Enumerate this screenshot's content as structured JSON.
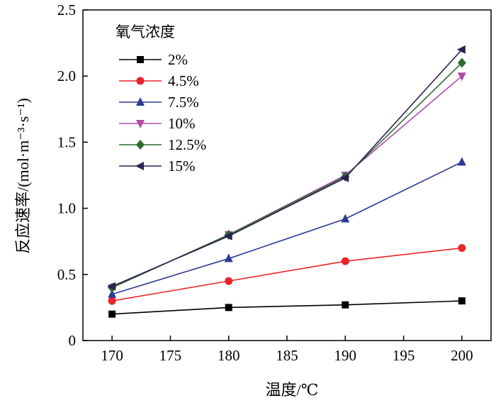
{
  "chart_data": {
    "type": "line",
    "xlabel": "温度/℃",
    "ylabel": "反应速率/(mol·m⁻³·s⁻¹)",
    "x": [
      170,
      180,
      190,
      200
    ],
    "xlim": [
      167.5,
      202.5
    ],
    "ylim": [
      0,
      2.5
    ],
    "xticks": [
      170,
      175,
      180,
      185,
      190,
      195,
      200
    ],
    "yticks": [
      0,
      0.5,
      1.0,
      1.5,
      2.0,
      2.5
    ],
    "xtick_labels": [
      "170",
      "175",
      "180",
      "185",
      "190",
      "195",
      "200"
    ],
    "ytick_labels": [
      "0",
      "0.5",
      "1.0",
      "1.5",
      "2.0",
      "2.5"
    ],
    "grid": false,
    "legend": {
      "title": "氧气浓度",
      "placement": "top-left"
    },
    "series": [
      {
        "name": "2%",
        "color": "#000000",
        "marker": "square",
        "values": [
          0.2,
          0.25,
          0.27,
          0.3
        ]
      },
      {
        "name": "4.5%",
        "color": "#e8242b",
        "marker": "circle",
        "values": [
          0.3,
          0.45,
          0.6,
          0.7
        ]
      },
      {
        "name": "7.5%",
        "color": "#2e3a92",
        "marker": "triangle-up",
        "values": [
          0.35,
          0.62,
          0.92,
          1.35
        ]
      },
      {
        "name": "10%",
        "color": "#b14aa8",
        "marker": "triangle-down",
        "values": [
          0.4,
          0.8,
          1.25,
          2.0
        ]
      },
      {
        "name": "12.5%",
        "color": "#2f6b2f",
        "marker": "diamond",
        "values": [
          0.4,
          0.8,
          1.24,
          2.1
        ]
      },
      {
        "name": "15%",
        "color": "#2d2150",
        "marker": "triangle-left",
        "values": [
          0.41,
          0.79,
          1.23,
          2.2
        ]
      }
    ]
  }
}
